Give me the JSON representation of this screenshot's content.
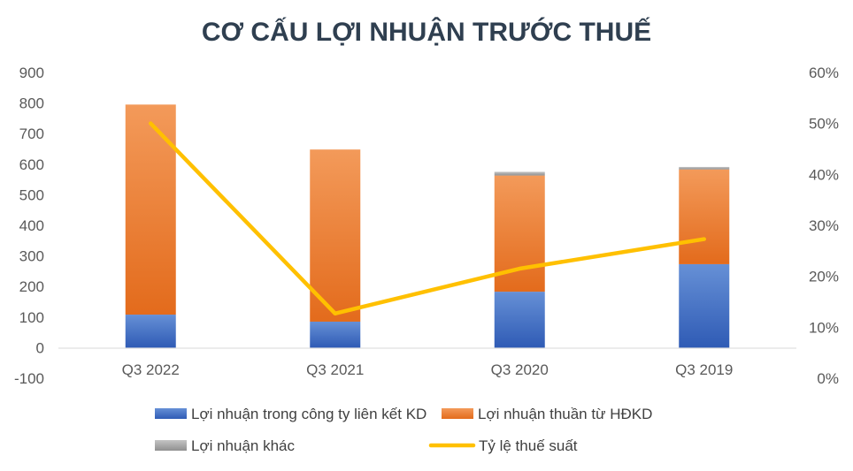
{
  "chart_data": {
    "type": "bar",
    "stacked": true,
    "title": "CƠ CẤU LỢI NHUẬN TRƯỚC THUẾ",
    "categories": [
      "Q3 2022",
      "Q3 2021",
      "Q3 2020",
      "Q3 2019"
    ],
    "series": [
      {
        "name": "Lợi nhuận trong công ty liên kết KD",
        "type": "bar",
        "axis": "left",
        "values": [
          108,
          85,
          183,
          273
        ],
        "color": "#4472c4"
      },
      {
        "name": "Lợi nhuận thuần từ HĐKD",
        "type": "bar",
        "axis": "left",
        "values": [
          687,
          563,
          380,
          310
        ],
        "color": "#ed7d31"
      },
      {
        "name": "Lợi nhuận khác",
        "type": "bar",
        "axis": "left",
        "values": [
          0,
          0,
          12,
          8
        ],
        "color": "#a5a5a5"
      },
      {
        "name": "Tỷ lệ thuế suất",
        "type": "line",
        "axis": "right",
        "values": [
          0.5,
          0.127,
          0.215,
          0.273
        ],
        "color": "#ffc000"
      }
    ],
    "y_left": {
      "min": -100,
      "max": 900,
      "ticks": [
        "900",
        "800",
        "700",
        "600",
        "500",
        "400",
        "300",
        "200",
        "100",
        "0",
        "-100"
      ]
    },
    "y_right": {
      "min": 0,
      "max": 0.6,
      "ticks": [
        "60%",
        "50%",
        "40%",
        "30%",
        "20%",
        "10%",
        "0%"
      ]
    },
    "grid": false,
    "legend_position": "bottom"
  }
}
